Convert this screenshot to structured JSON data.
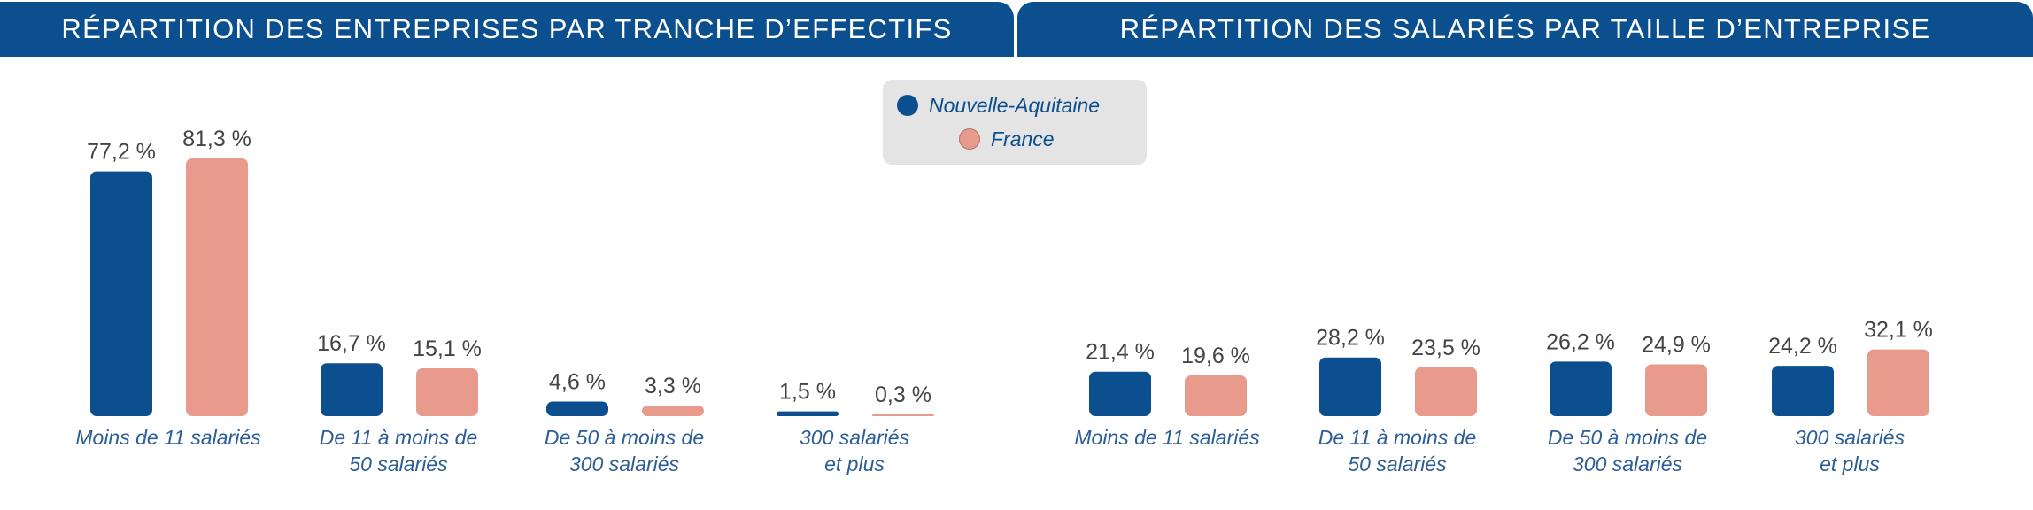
{
  "colors": {
    "header_bg": "#0b4f8f",
    "header_text": "#ffffff",
    "nouvelle_aquitaine": "#0b4f8f",
    "france": "#e89a8d",
    "legend_bg": "#e4e4e4",
    "category_text": "#2c5d96",
    "value_text": "#444444"
  },
  "headers": {
    "left": "RÉPARTITION DES ENTREPRISES PAR TRANCHE D’EFFECTIFS",
    "right": "RÉPARTITION DES SALARIÉS PAR TAILLE D’ENTREPRISE"
  },
  "legend": {
    "items": [
      {
        "label": "Nouvelle-Aquitaine",
        "color": "#0b4f8f"
      },
      {
        "label": "France",
        "color": "#e89a8d"
      }
    ]
  },
  "chart_data": [
    {
      "type": "bar",
      "title": "RÉPARTITION DES ENTREPRISES PAR TRANCHE D’EFFECTIFS",
      "categories": [
        [
          "Moins de 11 salariés"
        ],
        [
          "De 11 à moins de",
          "50 salariés"
        ],
        [
          "De 50 à moins de",
          "300 salariés"
        ],
        [
          "300 salariés",
          "et plus"
        ]
      ],
      "series": [
        {
          "name": "Nouvelle-Aquitaine",
          "values": [
            77.2,
            16.7,
            4.6,
            1.5
          ],
          "labels": [
            "77,2 %",
            "16,7 %",
            "4,6 %",
            "1,5 %"
          ]
        },
        {
          "name": "France",
          "values": [
            81.3,
            15.1,
            3.3,
            0.3
          ],
          "labels": [
            "81,3 %",
            "15,1 %",
            "3,3 %",
            "0,3 %"
          ]
        }
      ],
      "grid": false,
      "legend_position": "top-center"
    },
    {
      "type": "bar",
      "title": "RÉPARTITION DES SALARIÉS PAR TAILLE D’ENTREPRISE",
      "categories": [
        [
          "Moins de 11 salariés"
        ],
        [
          "De 11 à moins de",
          "50 salariés"
        ],
        [
          "De 50 à moins de",
          "300 salariés"
        ],
        [
          "300 salariés",
          "et plus"
        ]
      ],
      "series": [
        {
          "name": "Nouvelle-Aquitaine",
          "values": [
            21.4,
            28.2,
            26.2,
            24.2
          ],
          "labels": [
            "21,4 %",
            "28,2 %",
            "26,2 %",
            "24,2 %"
          ]
        },
        {
          "name": "France",
          "values": [
            19.6,
            23.5,
            24.9,
            32.1
          ],
          "labels": [
            "19,6 %",
            "23,5 %",
            "24,9 %",
            "32,1 %"
          ]
        }
      ],
      "grid": false,
      "legend_position": "top-center"
    }
  ]
}
